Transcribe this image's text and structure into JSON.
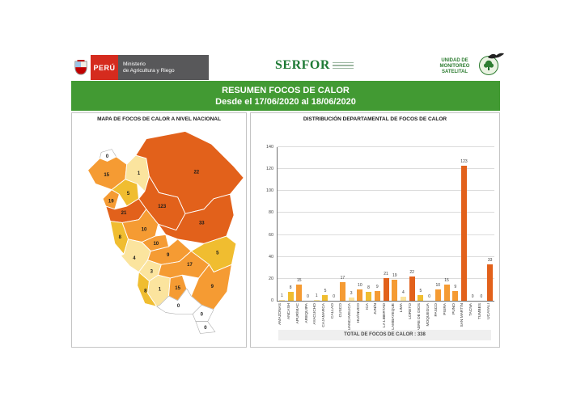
{
  "header": {
    "peru_label": "PERÚ",
    "ministry_line1": "Ministerio",
    "ministry_line2": "de Agricultura y Riego",
    "serfor": "SERFOR",
    "monitoring_unit": "UNIDAD DE MONITOREO SATELITAL"
  },
  "title_bar": {
    "line1": "RESUMEN FOCOS DE CALOR",
    "line2": "Desde el 17/06/2020 al 18/06/2020"
  },
  "map_panel": {
    "title": "MAPA DE FOCOS DE CALOR A NIVEL NACIONAL"
  },
  "chart_panel": {
    "title": "DISTRIBUCIÓN DEPARTAMENTAL DE FOCOS DE CALOR",
    "total_label": "TOTAL DE FOCOS DE CALOR : 338"
  },
  "chart_data": {
    "type": "bar",
    "title": "DISTRIBUCIÓN DEPARTAMENTAL DE FOCOS DE CALOR",
    "categories": [
      "AMAZONAS",
      "ANCASH",
      "APURÍMAC",
      "AREQUIPA",
      "AYACUCHO",
      "CAJAMARCA",
      "CALLAO",
      "CUSCO",
      "HUANCAVELICA",
      "HUÁNUCO",
      "ICA",
      "JUNÍN",
      "LA LIBERTAD",
      "LAMBAYEQUE",
      "LIMA",
      "LORETO",
      "MADRE DE DIOS",
      "MOQUEGUA",
      "PASCO",
      "PIURA",
      "PUNO",
      "SAN MARTÍN",
      "TACNA",
      "TUMBES",
      "UCAYALI"
    ],
    "values": [
      1,
      8,
      15,
      0,
      1,
      5,
      0,
      17,
      3,
      10,
      8,
      9,
      21,
      19,
      4,
      22,
      5,
      0,
      10,
      15,
      9,
      123,
      0,
      0,
      33
    ],
    "total": 338,
    "ylim": [
      0,
      140
    ],
    "ytick_step": 20,
    "grid": true,
    "legend": false,
    "color_scale": [
      {
        "min": 20,
        "color": "#E2611B"
      },
      {
        "min": 9,
        "color": "#F59B33"
      },
      {
        "min": 5,
        "color": "#F0BD30"
      },
      {
        "min": 1,
        "color": "#FBE49E"
      },
      {
        "min": 0,
        "color": "#FFFFFF"
      }
    ],
    "accent_green": "#429A33"
  }
}
